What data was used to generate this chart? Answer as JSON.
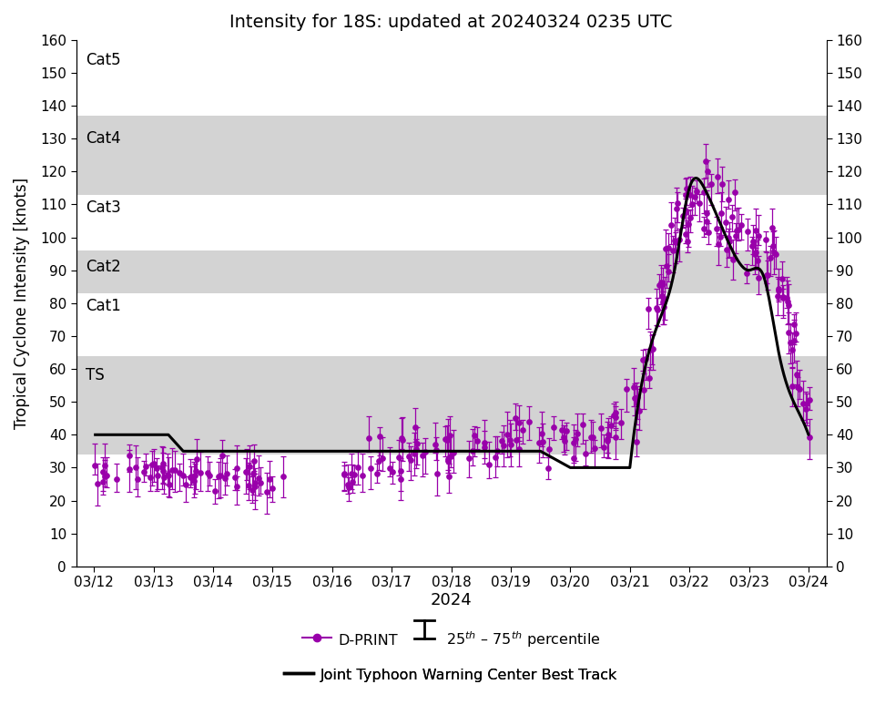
{
  "title": "Intensity for 18S: updated at 20240324 0235 UTC",
  "ylabel": "Tropical Cyclone Intensity [knots]",
  "xlabel": "2024",
  "ylim": [
    0,
    160
  ],
  "yticks": [
    0,
    10,
    20,
    30,
    40,
    50,
    60,
    70,
    80,
    90,
    100,
    110,
    120,
    130,
    140,
    150,
    160
  ],
  "category_bands": [
    {
      "name": "TS",
      "ymin": 34,
      "ymax": 64,
      "color": "#d3d3d3"
    },
    {
      "name": "Cat1",
      "ymin": 64,
      "ymax": 83,
      "color": "#ffffff"
    },
    {
      "name": "Cat2",
      "ymin": 83,
      "ymax": 96,
      "color": "#d3d3d3"
    },
    {
      "name": "Cat3",
      "ymin": 96,
      "ymax": 113,
      "color": "#ffffff"
    },
    {
      "name": "Cat4",
      "ymin": 113,
      "ymax": 137,
      "color": "#d3d3d3"
    },
    {
      "name": "Cat5",
      "ymin": 137,
      "ymax": 160,
      "color": "#ffffff"
    }
  ],
  "cat_labels": [
    {
      "name": "Cat5",
      "y": 154
    },
    {
      "name": "Cat4",
      "y": 130
    },
    {
      "name": "Cat3",
      "y": 109
    },
    {
      "name": "Cat2",
      "y": 91
    },
    {
      "name": "Cat1",
      "y": 79
    },
    {
      "name": "TS",
      "y": 58
    }
  ],
  "dprint_color": "#9900AA",
  "best_track_color": "#000000",
  "xticklabels": [
    "03/12",
    "03/13",
    "03/14",
    "03/15",
    "03/16",
    "03/17",
    "03/18",
    "03/19",
    "03/20",
    "03/21",
    "03/22",
    "03/23",
    "03/24"
  ],
  "xtick_positions": [
    0,
    1,
    2,
    3,
    4,
    5,
    6,
    7,
    8,
    9,
    10,
    11,
    12
  ],
  "xlim": [
    -0.3,
    12.3
  ],
  "best_track_x": [
    0.0,
    0.25,
    0.5,
    0.75,
    1.0,
    1.25,
    1.5,
    1.75,
    2.0,
    2.5,
    3.0,
    3.5,
    4.0,
    4.5,
    5.0,
    5.5,
    6.0,
    6.5,
    7.0,
    7.5,
    8.0,
    8.5,
    9.0,
    9.25,
    9.5,
    9.75,
    10.0,
    10.25,
    10.5,
    10.75,
    11.0,
    11.25,
    11.5,
    11.75,
    12.0
  ],
  "best_track_y": [
    40,
    40,
    40,
    40,
    40,
    40,
    35,
    35,
    35,
    35,
    35,
    35,
    35,
    35,
    35,
    35,
    35,
    35,
    35,
    35,
    30,
    30,
    30,
    60,
    75,
    90,
    115,
    115,
    105,
    95,
    90,
    88,
    65,
    50,
    40
  ],
  "title_fontsize": 14,
  "ylabel_fontsize": 12,
  "xlabel_fontsize": 13,
  "tick_fontsize": 11,
  "cat_fontsize": 12,
  "legend_fontsize": 11.5,
  "legend_label_dprint": "D-PRINT",
  "legend_label_best": "Joint Typhoon Warning Center Best Track",
  "legend_perc_text": "25$^{th}$ – 75$^{th}$ percentile"
}
